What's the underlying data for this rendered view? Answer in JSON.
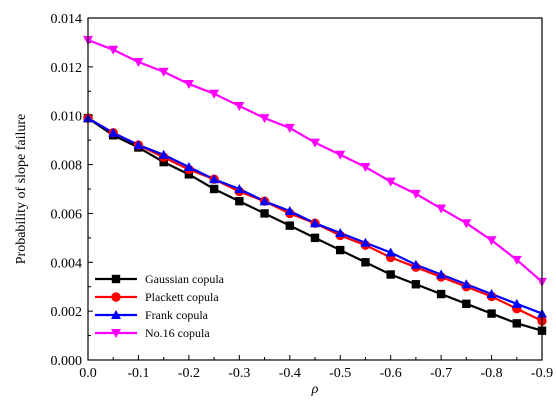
{
  "chart_data": {
    "type": "line",
    "title": "",
    "xlabel": "ρ",
    "ylabel": "Probability of slope failure",
    "x": [
      0.0,
      -0.05,
      -0.1,
      -0.15,
      -0.2,
      -0.25,
      -0.3,
      -0.35,
      -0.4,
      -0.45,
      -0.5,
      -0.55,
      -0.6,
      -0.65,
      -0.7,
      -0.75,
      -0.8,
      -0.85,
      -0.9
    ],
    "xlim": [
      0.0,
      -0.9
    ],
    "ylim": [
      0.0,
      0.014
    ],
    "x_ticks": [
      "0.0",
      "-0.1",
      "-0.2",
      "-0.3",
      "-0.4",
      "-0.5",
      "-0.6",
      "-0.7",
      "-0.8",
      "-0.9"
    ],
    "y_ticks": [
      "0.000",
      "0.002",
      "0.004",
      "0.006",
      "0.008",
      "0.010",
      "0.012",
      "0.014"
    ],
    "grid": false,
    "legend_position": "bottom-left",
    "series": [
      {
        "name": "Gaussian copula",
        "color": "#000000",
        "marker": "square",
        "values": [
          0.0099,
          0.0092,
          0.0087,
          0.0081,
          0.0076,
          0.007,
          0.0065,
          0.006,
          0.0055,
          0.005,
          0.0045,
          0.004,
          0.0035,
          0.0031,
          0.0027,
          0.0023,
          0.0019,
          0.0015,
          0.0012
        ]
      },
      {
        "name": "Plackett copula",
        "color": "#ff0000",
        "marker": "circle",
        "values": [
          0.0099,
          0.0093,
          0.0088,
          0.0083,
          0.0078,
          0.0074,
          0.0069,
          0.0065,
          0.006,
          0.0056,
          0.0051,
          0.0047,
          0.0042,
          0.0038,
          0.0034,
          0.003,
          0.0026,
          0.0021,
          0.0016
        ]
      },
      {
        "name": "Frank copula",
        "color": "#0000ff",
        "marker": "triangle-up",
        "values": [
          0.0099,
          0.0093,
          0.0088,
          0.0084,
          0.0079,
          0.0074,
          0.007,
          0.0065,
          0.0061,
          0.0056,
          0.0052,
          0.0048,
          0.0044,
          0.0039,
          0.0035,
          0.0031,
          0.0027,
          0.0023,
          0.0019
        ]
      },
      {
        "name": "No.16 copula",
        "color": "#ff00ff",
        "marker": "triangle-down",
        "values": [
          0.0131,
          0.0127,
          0.0122,
          0.0118,
          0.0113,
          0.0109,
          0.0104,
          0.0099,
          0.0095,
          0.0089,
          0.0084,
          0.0079,
          0.0073,
          0.0068,
          0.0062,
          0.0056,
          0.0049,
          0.0041,
          0.0032
        ]
      }
    ]
  }
}
